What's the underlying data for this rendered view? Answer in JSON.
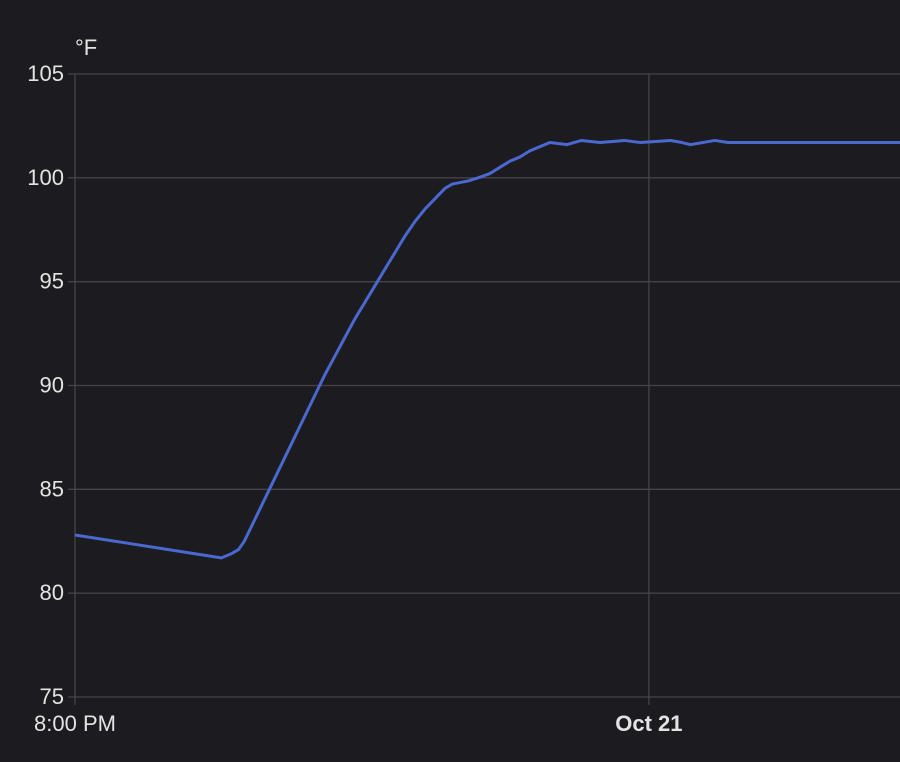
{
  "chart_data": {
    "type": "line",
    "y_label": "°F",
    "xlim": [
      0,
      5.75
    ],
    "xticks": [
      {
        "value": 0,
        "label": "8:00 PM"
      },
      {
        "value": 4,
        "label": "Oct 21"
      }
    ],
    "ylim": [
      75,
      105
    ],
    "yticks": [
      75,
      80,
      85,
      90,
      95,
      100,
      105
    ],
    "grid": true,
    "series": [
      {
        "color": "#4a68cf",
        "x": [
          0,
          1.02,
          1.09,
          1.14,
          1.18,
          1.25,
          1.32,
          1.39,
          1.46,
          1.53,
          1.6,
          1.67,
          1.74,
          1.81,
          1.88,
          1.95,
          2.02,
          2.09,
          2.16,
          2.23,
          2.3,
          2.37,
          2.44,
          2.51,
          2.58,
          2.63,
          2.74,
          2.81,
          2.89,
          2.96,
          3.03,
          3.1,
          3.17,
          3.24,
          3.31,
          3.43,
          3.53,
          3.66,
          3.83,
          3.94,
          4.15,
          4.23,
          4.29,
          4.46,
          4.55,
          5.75
        ],
        "values": [
          82.8,
          81.7,
          81.9,
          82.1,
          82.5,
          83.5,
          84.5,
          85.5,
          86.5,
          87.5,
          88.5,
          89.5,
          90.5,
          91.4,
          92.3,
          93.2,
          94.0,
          94.8,
          95.6,
          96.4,
          97.2,
          97.9,
          98.5,
          99.0,
          99.5,
          99.7,
          99.85,
          100.0,
          100.2,
          100.5,
          100.8,
          101.0,
          101.3,
          101.5,
          101.7,
          101.6,
          101.8,
          101.7,
          101.8,
          101.7,
          101.8,
          101.7,
          101.6,
          101.8,
          101.7,
          101.7
        ]
      }
    ]
  }
}
